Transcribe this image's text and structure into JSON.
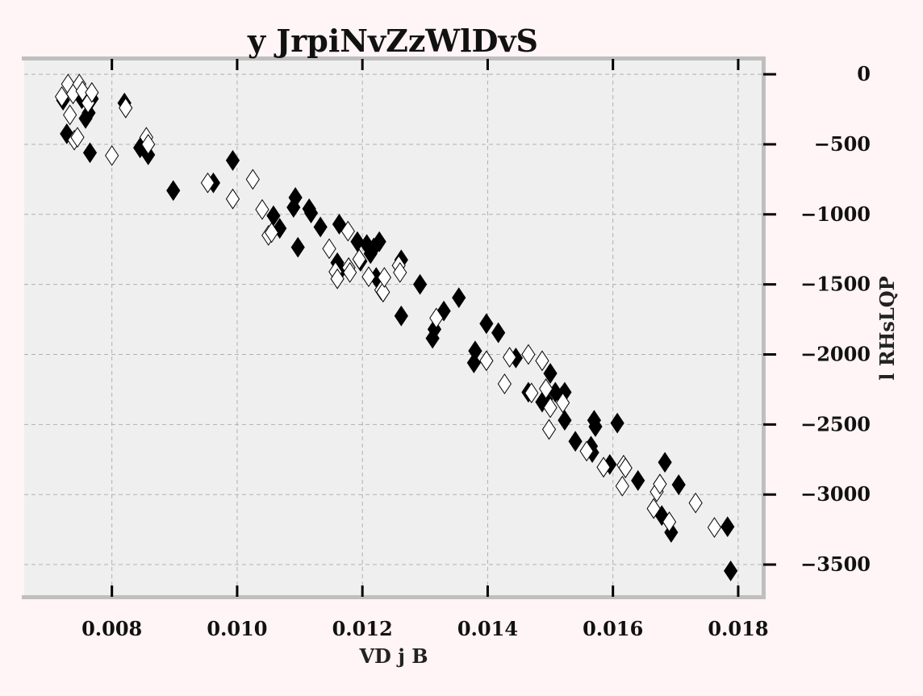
{
  "chart_data": {
    "type": "scatter",
    "title": "y JrpiNvZzWlDvS",
    "xlabel": "VD j B",
    "ylabel": "l RHsLQP",
    "xlim": [
      0.0066,
      0.0184
    ],
    "ylim": [
      -3730,
      110
    ],
    "x_ticks": [
      0.008,
      0.01,
      0.012,
      0.014,
      0.016,
      0.018
    ],
    "x_tick_labels": [
      "0.008",
      "0.010",
      "0.012",
      "0.014",
      "0.016",
      "0.018"
    ],
    "y_ticks": [
      0,
      -500,
      -1000,
      -1500,
      -2000,
      -2500,
      -3000,
      -3500
    ],
    "y_tick_labels": [
      "0",
      "−500",
      "−1000",
      "−1500",
      "−2000",
      "−2500",
      "−3000",
      "−3500"
    ],
    "y_axis_side": "right",
    "grid": true,
    "marker": "diamond",
    "colors": {
      "background": "#fff4f6",
      "plot_bg": "#efefef",
      "grid": "#b0b0b0",
      "spine": "#bfbfbf",
      "filled": "#000000",
      "hollow_fill": "#ffffff"
    },
    "series": [
      {
        "style": "filled",
        "points": [
          [
            0.00722,
            -185
          ],
          [
            0.00728,
            -425
          ],
          [
            0.00745,
            -95
          ],
          [
            0.00752,
            -175
          ],
          [
            0.00758,
            -315
          ],
          [
            0.00763,
            -275
          ],
          [
            0.00768,
            -175
          ],
          [
            0.00765,
            -560
          ],
          [
            0.0082,
            -205
          ],
          [
            0.00845,
            -525
          ],
          [
            0.00858,
            -575
          ],
          [
            0.00898,
            -830
          ],
          [
            0.00962,
            -775
          ],
          [
            0.00993,
            -615
          ],
          [
            0.01058,
            -1010
          ],
          [
            0.01068,
            -1100
          ],
          [
            0.0109,
            -950
          ],
          [
            0.01093,
            -880
          ],
          [
            0.01097,
            -1235
          ],
          [
            0.01115,
            -960
          ],
          [
            0.01118,
            -990
          ],
          [
            0.01133,
            -1090
          ],
          [
            0.0116,
            -1345
          ],
          [
            0.01163,
            -1070
          ],
          [
            0.01165,
            -1400
          ],
          [
            0.01192,
            -1195
          ],
          [
            0.01197,
            -1335
          ],
          [
            0.01207,
            -1215
          ],
          [
            0.01213,
            -1280
          ],
          [
            0.01218,
            -1240
          ],
          [
            0.01222,
            -1450
          ],
          [
            0.01227,
            -1195
          ],
          [
            0.01262,
            -1325
          ],
          [
            0.01262,
            -1725
          ],
          [
            0.01292,
            -1500
          ],
          [
            0.01312,
            -1885
          ],
          [
            0.01315,
            -1820
          ],
          [
            0.0133,
            -1690
          ],
          [
            0.01354,
            -1595
          ],
          [
            0.01378,
            -2060
          ],
          [
            0.0138,
            -1975
          ],
          [
            0.01398,
            -1780
          ],
          [
            0.01417,
            -1845
          ],
          [
            0.01445,
            -2025
          ],
          [
            0.01465,
            -2270
          ],
          [
            0.01487,
            -2340
          ],
          [
            0.01493,
            -2320
          ],
          [
            0.015,
            -2135
          ],
          [
            0.01508,
            -2270
          ],
          [
            0.01518,
            -2300
          ],
          [
            0.01523,
            -2270
          ],
          [
            0.01523,
            -2470
          ],
          [
            0.0154,
            -2620
          ],
          [
            0.01565,
            -2655
          ],
          [
            0.01567,
            -2700
          ],
          [
            0.0157,
            -2470
          ],
          [
            0.01572,
            -2515
          ],
          [
            0.01595,
            -2785
          ],
          [
            0.01607,
            -2490
          ],
          [
            0.0164,
            -2900
          ],
          [
            0.01678,
            -3150
          ],
          [
            0.01683,
            -2770
          ],
          [
            0.01693,
            -3270
          ],
          [
            0.01705,
            -2930
          ],
          [
            0.01783,
            -3230
          ],
          [
            0.01788,
            -3545
          ]
        ]
      },
      {
        "style": "hollow",
        "points": [
          [
            0.0072,
            -160
          ],
          [
            0.0073,
            -70
          ],
          [
            0.00733,
            -290
          ],
          [
            0.00738,
            -140
          ],
          [
            0.0074,
            -470
          ],
          [
            0.00745,
            -450
          ],
          [
            0.00748,
            -70
          ],
          [
            0.00753,
            -120
          ],
          [
            0.00762,
            -205
          ],
          [
            0.00768,
            -130
          ],
          [
            0.008,
            -580
          ],
          [
            0.00822,
            -240
          ],
          [
            0.00855,
            -450
          ],
          [
            0.00858,
            -500
          ],
          [
            0.00953,
            -775
          ],
          [
            0.00993,
            -890
          ],
          [
            0.01025,
            -750
          ],
          [
            0.0104,
            -965
          ],
          [
            0.0105,
            -1150
          ],
          [
            0.01055,
            -1130
          ],
          [
            0.01147,
            -1245
          ],
          [
            0.01157,
            -1410
          ],
          [
            0.0116,
            -1460
          ],
          [
            0.01177,
            -1120
          ],
          [
            0.01178,
            -1380
          ],
          [
            0.0118,
            -1415
          ],
          [
            0.01195,
            -1320
          ],
          [
            0.0121,
            -1445
          ],
          [
            0.0123,
            -1540
          ],
          [
            0.01233,
            -1555
          ],
          [
            0.01235,
            -1450
          ],
          [
            0.01258,
            -1365
          ],
          [
            0.0126,
            -1415
          ],
          [
            0.01318,
            -1740
          ],
          [
            0.01398,
            -2045
          ],
          [
            0.01427,
            -2210
          ],
          [
            0.01435,
            -2020
          ],
          [
            0.01465,
            -2000
          ],
          [
            0.0147,
            -2275
          ],
          [
            0.01487,
            -2045
          ],
          [
            0.01493,
            -2245
          ],
          [
            0.01498,
            -2535
          ],
          [
            0.015,
            -2380
          ],
          [
            0.0152,
            -2345
          ],
          [
            0.01558,
            -2690
          ],
          [
            0.01585,
            -2805
          ],
          [
            0.01615,
            -2940
          ],
          [
            0.01617,
            -2790
          ],
          [
            0.0162,
            -2810
          ],
          [
            0.01665,
            -3100
          ],
          [
            0.0167,
            -2980
          ],
          [
            0.01675,
            -2925
          ],
          [
            0.0169,
            -3195
          ],
          [
            0.01732,
            -3060
          ],
          [
            0.01762,
            -3235
          ]
        ]
      }
    ]
  }
}
